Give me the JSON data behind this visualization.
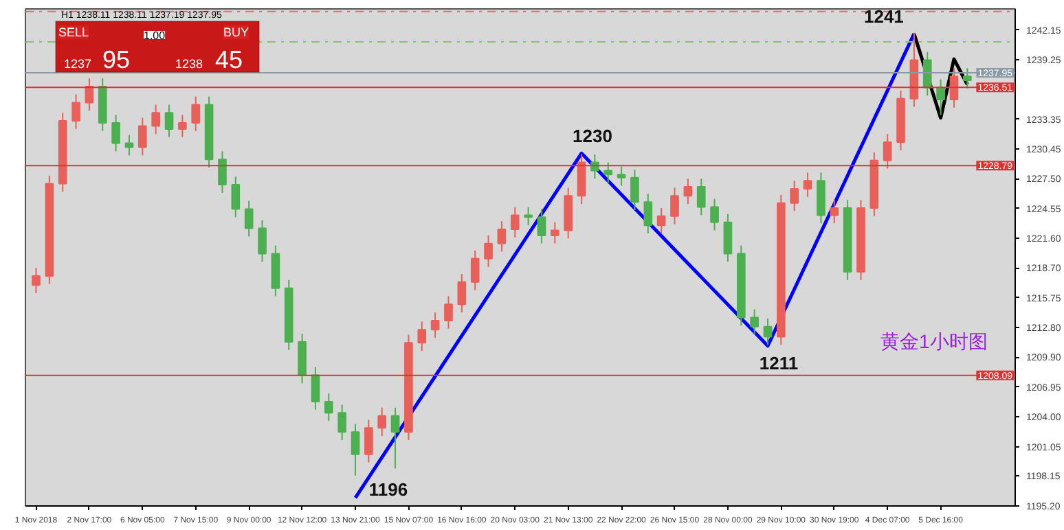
{
  "chart_data": {
    "type": "candlestick",
    "categories": [
      "1 Nov 2018",
      null,
      null,
      null,
      "2 Nov 17:00",
      null,
      null,
      null,
      "6 Nov 05:00",
      null,
      null,
      null,
      "7 Nov 15:00",
      null,
      null,
      null,
      "9 Nov 00:00",
      null,
      null,
      null,
      "12 Nov 12:00",
      null,
      null,
      null,
      "13 Nov 21:00",
      null,
      null,
      null,
      "15 Nov 07:00",
      null,
      null,
      null,
      "16 Nov 16:00",
      null,
      null,
      null,
      "20 Nov 03:00",
      null,
      null,
      null,
      "21 Nov 13:00",
      null,
      null,
      null,
      "22 Nov 22:00",
      null,
      null,
      null,
      "26 Nov 15:00",
      null,
      null,
      null,
      "28 Nov 00:00",
      null,
      null,
      null,
      "29 Nov 10:00",
      null,
      null,
      null,
      "30 Nov 19:00",
      null,
      null,
      null,
      "4 Dec 07:00",
      null,
      null,
      null,
      "5 Dec 16:00",
      null,
      null
    ],
    "ohlc": [
      [
        1217.0,
        1218.7,
        1216.2,
        1217.9
      ],
      [
        1217.9,
        1227.8,
        1217.1,
        1227.0
      ],
      [
        1227.0,
        1234.0,
        1226.2,
        1233.2
      ],
      [
        1233.2,
        1235.8,
        1232.4,
        1235.0
      ],
      [
        1235.0,
        1237.4,
        1234.2,
        1236.6
      ],
      [
        1236.6,
        1237.4,
        1232.2,
        1233.0
      ],
      [
        1233.0,
        1233.8,
        1230.2,
        1231.0
      ],
      [
        1231.0,
        1231.8,
        1229.8,
        1230.6
      ],
      [
        1230.6,
        1233.5,
        1229.8,
        1232.7
      ],
      [
        1232.7,
        1234.8,
        1231.9,
        1234.0
      ],
      [
        1234.0,
        1234.8,
        1231.6,
        1232.4
      ],
      [
        1232.4,
        1233.8,
        1231.6,
        1233.0
      ],
      [
        1233.0,
        1235.6,
        1232.2,
        1234.8
      ],
      [
        1234.8,
        1235.6,
        1228.6,
        1229.4
      ],
      [
        1229.4,
        1230.2,
        1226.1,
        1226.9
      ],
      [
        1226.9,
        1227.7,
        1223.7,
        1224.5
      ],
      [
        1224.5,
        1225.3,
        1221.8,
        1222.6
      ],
      [
        1222.6,
        1223.4,
        1219.3,
        1220.1
      ],
      [
        1220.1,
        1220.9,
        1215.9,
        1216.7
      ],
      [
        1216.7,
        1217.5,
        1210.6,
        1211.4
      ],
      [
        1211.4,
        1212.2,
        1207.3,
        1208.1
      ],
      [
        1208.1,
        1208.9,
        1204.7,
        1205.5
      ],
      [
        1205.5,
        1206.3,
        1203.6,
        1204.4
      ],
      [
        1204.4,
        1205.2,
        1201.7,
        1202.5
      ],
      [
        1202.5,
        1203.3,
        1198.2,
        1200.3
      ],
      [
        1200.3,
        1203.7,
        1199.5,
        1202.9
      ],
      [
        1202.9,
        1204.9,
        1202.1,
        1204.1
      ],
      [
        1204.1,
        1204.9,
        1198.9,
        1202.5
      ],
      [
        1202.5,
        1212.1,
        1201.7,
        1211.3
      ],
      [
        1211.3,
        1213.4,
        1210.5,
        1212.6
      ],
      [
        1212.6,
        1214.3,
        1211.8,
        1213.5
      ],
      [
        1213.5,
        1215.9,
        1212.7,
        1215.1
      ],
      [
        1215.1,
        1218.1,
        1214.3,
        1217.3
      ],
      [
        1217.3,
        1220.4,
        1216.5,
        1219.6
      ],
      [
        1219.6,
        1221.9,
        1218.8,
        1221.1
      ],
      [
        1221.1,
        1223.3,
        1220.3,
        1222.5
      ],
      [
        1222.5,
        1224.7,
        1221.7,
        1223.9
      ],
      [
        1223.9,
        1224.7,
        1222.9,
        1223.7
      ],
      [
        1223.7,
        1224.5,
        1221.1,
        1221.9
      ],
      [
        1221.9,
        1223.2,
        1221.1,
        1222.4
      ],
      [
        1222.4,
        1226.6,
        1221.6,
        1225.8
      ],
      [
        1225.8,
        1229.9,
        1225.0,
        1229.1
      ],
      [
        1229.1,
        1229.9,
        1227.5,
        1228.3
      ],
      [
        1228.3,
        1229.1,
        1227.1,
        1227.9
      ],
      [
        1227.9,
        1228.7,
        1226.8,
        1227.6
      ],
      [
        1227.6,
        1228.4,
        1224.4,
        1225.2
      ],
      [
        1225.2,
        1226.0,
        1222.1,
        1222.9
      ],
      [
        1222.9,
        1224.6,
        1222.1,
        1223.8
      ],
      [
        1223.8,
        1226.6,
        1223.0,
        1225.8
      ],
      [
        1225.8,
        1227.5,
        1225.0,
        1226.7
      ],
      [
        1226.7,
        1227.5,
        1223.9,
        1224.7
      ],
      [
        1224.7,
        1225.5,
        1222.4,
        1223.2
      ],
      [
        1223.2,
        1224.0,
        1219.3,
        1220.1
      ],
      [
        1220.1,
        1220.9,
        1213.0,
        1213.8
      ],
      [
        1213.8,
        1214.6,
        1212.1,
        1212.9
      ],
      [
        1212.9,
        1213.7,
        1211.1,
        1211.9
      ],
      [
        1211.9,
        1225.9,
        1211.1,
        1225.1
      ],
      [
        1225.1,
        1227.3,
        1224.3,
        1226.5
      ],
      [
        1226.5,
        1228.1,
        1225.7,
        1227.3
      ],
      [
        1227.3,
        1228.1,
        1223.1,
        1223.9
      ],
      [
        1223.9,
        1225.4,
        1223.1,
        1224.6
      ],
      [
        1224.6,
        1225.4,
        1217.5,
        1218.3
      ],
      [
        1218.3,
        1225.4,
        1217.5,
        1224.6
      ],
      [
        1224.6,
        1230.1,
        1223.8,
        1229.3
      ],
      [
        1229.3,
        1231.9,
        1228.5,
        1231.1
      ],
      [
        1231.1,
        1236.2,
        1230.3,
        1235.4
      ],
      [
        1235.4,
        1241.9,
        1234.6,
        1239.2
      ],
      [
        1239.2,
        1240.0,
        1235.7,
        1236.5
      ],
      [
        1236.5,
        1237.3,
        1233.8,
        1235.3
      ],
      [
        1235.3,
        1238.4,
        1234.5,
        1237.6
      ],
      [
        1237.6,
        1238.4,
        1236.4,
        1237.2
      ]
    ],
    "colors": [
      "#e8605a",
      "#e8605a",
      "#e8605a",
      "#e8605a",
      "#e8605a",
      "#4caf50",
      "#4caf50",
      "#4caf50",
      "#e8605a",
      "#e8605a",
      "#4caf50",
      "#e8605a",
      "#e8605a",
      "#4caf50",
      "#4caf50",
      "#4caf50",
      "#4caf50",
      "#4caf50",
      "#4caf50",
      "#4caf50",
      "#4caf50",
      "#4caf50",
      "#4caf50",
      "#4caf50",
      "#4caf50",
      "#e8605a",
      "#e8605a",
      "#4caf50",
      "#e8605a",
      "#e8605a",
      "#e8605a",
      "#e8605a",
      "#e8605a",
      "#e8605a",
      "#e8605a",
      "#e8605a",
      "#e8605a",
      "#4caf50",
      "#4caf50",
      "#e8605a",
      "#e8605a",
      "#e8605a",
      "#4caf50",
      "#4caf50",
      "#4caf50",
      "#4caf50",
      "#4caf50",
      "#e8605a",
      "#e8605a",
      "#e8605a",
      "#4caf50",
      "#4caf50",
      "#4caf50",
      "#4caf50",
      "#4caf50",
      "#4caf50",
      "#e8605a",
      "#e8605a",
      "#e8605a",
      "#4caf50",
      "#e8605a",
      "#4caf50",
      "#e8605a",
      "#e8605a",
      "#e8605a",
      "#e8605a",
      "#e8605a",
      "#4caf50",
      "#4caf50",
      "#e8605a",
      "#4caf50"
    ],
    "series": [
      {
        "type": "line",
        "color": "#0000ff",
        "values": [
          null,
          null,
          null,
          null,
          null,
          null,
          null,
          null,
          null,
          null,
          null,
          null,
          null,
          null,
          null,
          null,
          null,
          null,
          null,
          null,
          null,
          null,
          null,
          null,
          1196,
          null,
          null,
          null,
          null,
          null,
          null,
          null,
          null,
          null,
          null,
          null,
          null,
          null,
          null,
          null,
          null,
          1230,
          null,
          null,
          null,
          null,
          null,
          null,
          null,
          null,
          null,
          null,
          null,
          null,
          null,
          1211,
          null,
          null,
          null,
          null,
          null,
          null,
          null,
          null,
          null,
          null,
          1241.8,
          null,
          null,
          null,
          null
        ]
      },
      {
        "type": "line",
        "color": "#000000",
        "values": [
          null,
          null,
          null,
          null,
          null,
          null,
          null,
          null,
          null,
          null,
          null,
          null,
          null,
          null,
          null,
          null,
          null,
          null,
          null,
          null,
          null,
          null,
          null,
          null,
          null,
          null,
          null,
          null,
          null,
          null,
          null,
          null,
          null,
          null,
          null,
          null,
          null,
          null,
          null,
          null,
          null,
          null,
          null,
          null,
          null,
          null,
          null,
          null,
          null,
          null,
          null,
          null,
          null,
          null,
          null,
          null,
          null,
          null,
          null,
          null,
          null,
          null,
          null,
          null,
          null,
          null,
          1241.8,
          null,
          1233.5,
          1239.3,
          1236.8
        ]
      }
    ],
    "ylim": [
      1195.2,
      1244.25
    ],
    "yticks": [
      {
        "value": 1195.2,
        "label": "1195.20"
      },
      {
        "value": 1198.15,
        "label": "1198.15"
      },
      {
        "value": 1201.05,
        "label": "1201.05"
      },
      {
        "value": 1204.0,
        "label": "1204.00"
      },
      {
        "value": 1206.95,
        "label": "1206.95"
      },
      {
        "value": 1209.9,
        "label": "1209.90"
      },
      {
        "value": 1212.8,
        "label": "1212.80"
      },
      {
        "value": 1215.75,
        "label": "1215.75"
      },
      {
        "value": 1218.7,
        "label": "1218.70"
      },
      {
        "value": 1221.6,
        "label": "1221.60"
      },
      {
        "value": 1224.55,
        "label": "1224.55"
      },
      {
        "value": 1227.5,
        "label": "1227.50"
      },
      {
        "value": 1230.45,
        "label": "1230.45"
      },
      {
        "value": 1233.35,
        "label": "1233.35"
      },
      {
        "value": 1239.25,
        "label": "1239.25"
      },
      {
        "value": 1242.15,
        "label": "1242.15"
      }
    ],
    "ref_lines": [
      {
        "axis": "y",
        "value": 1244.0,
        "label": null,
        "color": "#ff6060",
        "line_style": "dashdot"
      },
      {
        "axis": "y",
        "value": 1241.0,
        "label": null,
        "color": "#77cc66",
        "line_style": "dashdot"
      },
      {
        "axis": "y",
        "value": 1237.95,
        "label": "1237.95",
        "color": "#8c9aa8",
        "line_style": "solid"
      },
      {
        "axis": "y",
        "value": 1236.51,
        "label": "1236.51",
        "color": "#e03030",
        "line_style": "solid"
      },
      {
        "axis": "y",
        "value": 1228.79,
        "label": "1228.79",
        "color": "#e03030",
        "line_style": "solid"
      },
      {
        "axis": "y",
        "value": 1208.09,
        "label": "1208.09",
        "color": "#e03030",
        "line_style": "solid"
      }
    ],
    "annotations": [
      "1196",
      "1230",
      "1211",
      "1241",
      "黄金1小时图",
      "H1  1238.11 1238.11 1237.19 1237.95",
      "SELL",
      "1.00",
      "BUY",
      "1237",
      "95",
      "1238",
      "45"
    ],
    "grid": false
  }
}
